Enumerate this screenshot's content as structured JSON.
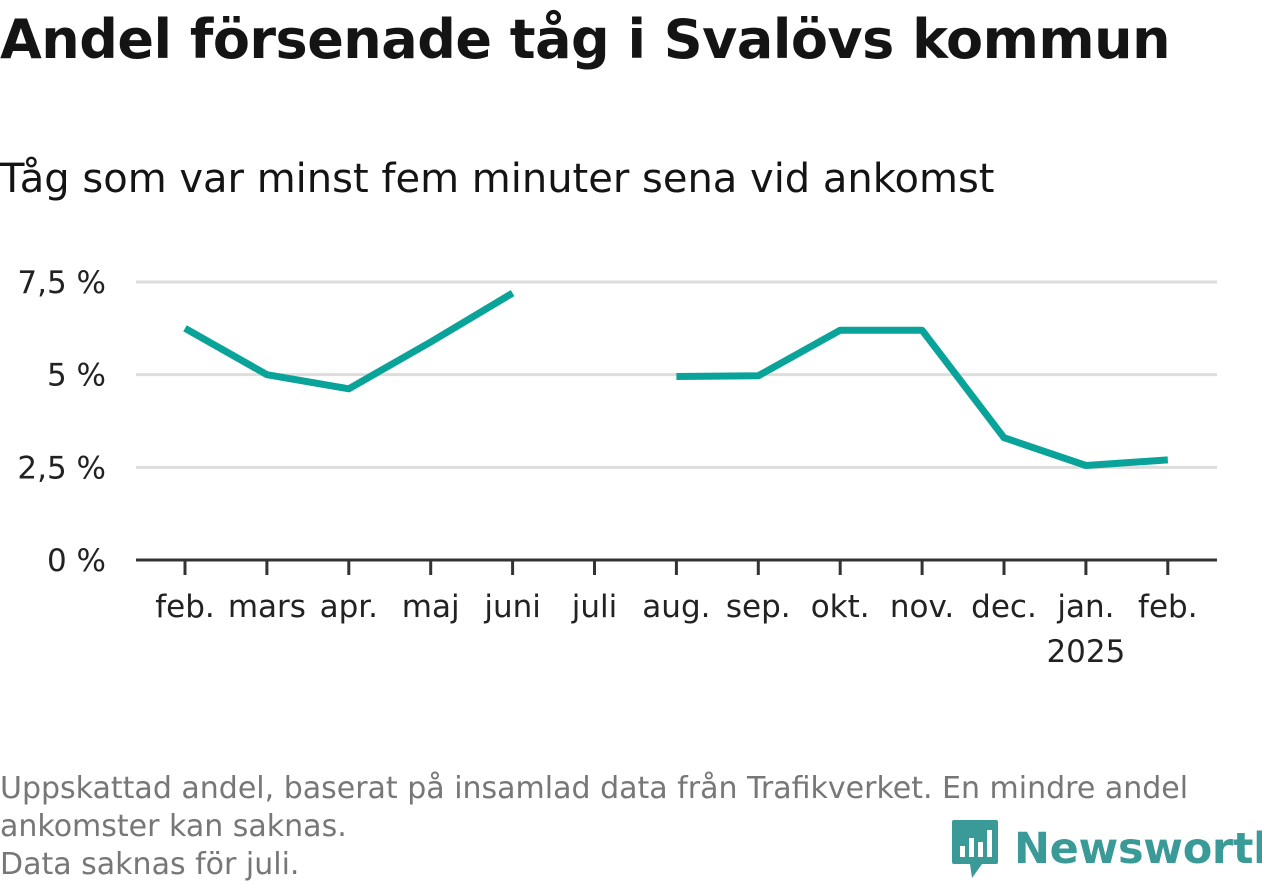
{
  "title": "Andel försenade tåg i Svalövs kommun",
  "subtitle": "Tåg som var minst fem minuter sena vid ankomst",
  "footnote": {
    "line1": "Uppskattad andel, baserat på insamlad data från Trafikverket. En mindre andel",
    "line2": "ankomster kan saknas.",
    "line3": "Data saknas för juli."
  },
  "brand": {
    "name": "Newsworthy",
    "icon": "newsworthy-logo-icon",
    "color": "#3a9a98"
  },
  "chart_data": {
    "type": "line",
    "categories": [
      "feb.",
      "mars",
      "apr.",
      "maj",
      "juni",
      "juli",
      "aug.",
      "sep.",
      "okt.",
      "nov.",
      "dec.",
      "jan.",
      "feb."
    ],
    "year_labels": [
      "",
      "",
      "",
      "",
      "",
      "",
      "",
      "",
      "",
      "",
      "",
      "2025",
      ""
    ],
    "series": [
      {
        "values": [
          6.25,
          5.0,
          4.62,
          5.88,
          7.2,
          null,
          4.95,
          4.97,
          6.2,
          6.2,
          3.3,
          2.55,
          2.7
        ]
      }
    ],
    "ylim": [
      0,
      7.5
    ],
    "yticks": [
      0,
      2.5,
      5,
      7.5
    ],
    "ytick_labels": [
      "0 %",
      "2,5 %",
      "5 %",
      "7,5 %"
    ],
    "grid": true,
    "line_color": "#0aa39a",
    "grid_color": "#dddddd",
    "axis_color": "#333333"
  }
}
